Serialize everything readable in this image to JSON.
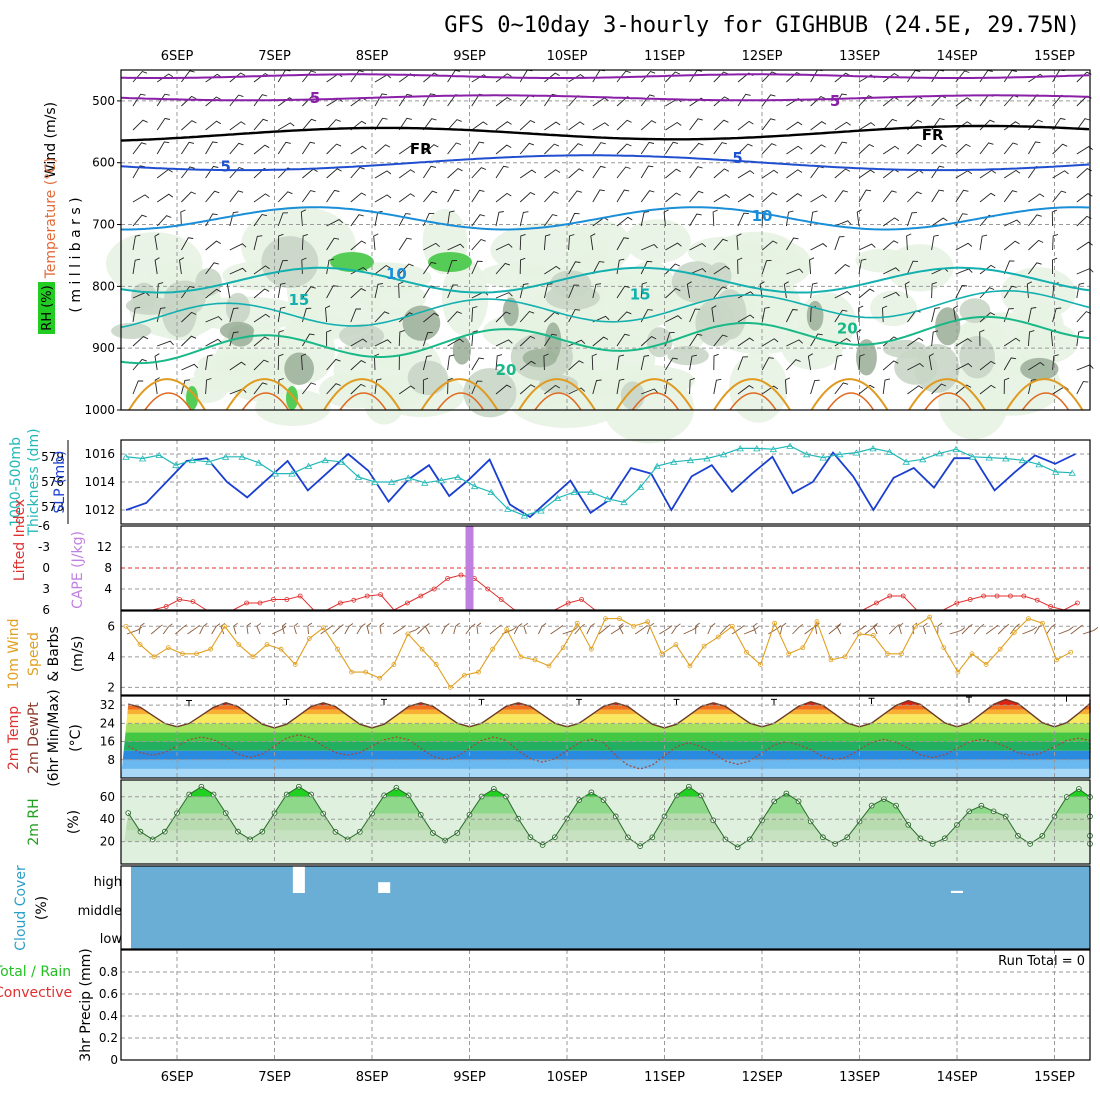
{
  "title": "GFS 0~10day 3-hourly for GIGHBUB (24.5E, 29.75N)",
  "dates": [
    "6SEP",
    "7SEP",
    "8SEP",
    "9SEP",
    "10SEP",
    "11SEP",
    "12SEP",
    "13SEP",
    "14SEP",
    "15SEP"
  ],
  "colors": {
    "temp_line": "#8a1fa8",
    "freeze_line": "#000000",
    "blue5": "#1f4fd0",
    "blue10": "#1a8fd8",
    "teal15": "#14b0b0",
    "green20": "#18b888",
    "orange25": "#e09a20",
    "slp": "#1a3fd0",
    "thickness": "#22b8b8",
    "cape": "#c080e0",
    "lifted": "#e03030",
    "wind": "#e0a020",
    "rh": "#22c022",
    "cloud": "#6aaed6",
    "rh_fill": "#dff0df"
  },
  "panels": {
    "upper": {
      "labels": [
        "Wind (m/s)",
        "Temperature (°C)",
        "RH (%)",
        "( m i l l i b a r s )"
      ],
      "y_ticks": [
        "500",
        "600",
        "700",
        "800",
        "900",
        "1000"
      ],
      "contour_labels": [
        {
          "text": "5",
          "at": "6SEP+34h",
          "level": 495,
          "color": "temp_line"
        },
        {
          "text": "5",
          "at": "12SEP+18h",
          "level": 500,
          "color": "temp_line"
        },
        {
          "text": "FR",
          "at": "8SEP+12h",
          "level": 578,
          "color": "freeze_line"
        },
        {
          "text": "FR",
          "at": "13SEP+18h",
          "level": 555,
          "color": "freeze_line"
        },
        {
          "text": "5",
          "at": "6SEP+12h",
          "level": 606,
          "color": "blue5"
        },
        {
          "text": "5",
          "at": "11SEP+18h",
          "level": 592,
          "color": "blue5"
        },
        {
          "text": "10",
          "at": "9SEP-18h",
          "level": 780,
          "color": "blue10"
        },
        {
          "text": "10",
          "at": "12SEP",
          "level": 686,
          "color": "blue10"
        },
        {
          "text": "15",
          "at": "7SEP+6h",
          "level": 822,
          "color": "teal15"
        },
        {
          "text": "15",
          "at": "10SEP+18h",
          "level": 813,
          "color": "teal15"
        },
        {
          "text": "20",
          "at": "9SEP+9h",
          "level": 935,
          "color": "green20"
        },
        {
          "text": "20",
          "at": "12SEP+21h",
          "level": 868,
          "color": "green20"
        }
      ]
    },
    "slp": {
      "labels": [
        "1000-500mb",
        "Thickness (dm)",
        "SLP (mb)"
      ],
      "left_ticks": [
        "579",
        "576",
        "573"
      ],
      "right_ticks": [
        "1016",
        "1014",
        "1012"
      ]
    },
    "cape": {
      "labels": [
        "Lifted Index",
        "CAPE (J/kg)"
      ],
      "left_ticks": [
        "-6",
        "-3",
        "0",
        "3",
        "6"
      ],
      "right_ticks": [
        "12",
        "8",
        "4"
      ]
    },
    "wind": {
      "labels": [
        "10m Wind",
        "Speed",
        "& Barbs",
        "(m/s)"
      ],
      "ticks": [
        "6",
        "4",
        "2"
      ]
    },
    "temp": {
      "labels": [
        "2m Temp",
        "2m DewPt",
        "(6hr Min/Max)",
        "(°C)"
      ],
      "ticks": [
        "32",
        "24",
        "16",
        "8"
      ]
    },
    "rh": {
      "labels": [
        "2m RH",
        "(%)"
      ],
      "ticks": [
        "60",
        "40",
        "20"
      ]
    },
    "cloud": {
      "labels": [
        "Cloud Cover",
        "(%)"
      ],
      "ticks": [
        "high",
        "middle",
        "low"
      ]
    },
    "precip": {
      "labels": [
        "Total / Rain",
        "Convective",
        "3hr Precip (mm)"
      ],
      "ticks": [
        "0.8",
        "0.6",
        "0.4",
        "0.2",
        "0"
      ],
      "run_total": "Run Total = 0"
    }
  },
  "chart_data": [
    {
      "type": "line",
      "name": "sea-level-pressure",
      "unit": "mb",
      "ylim": [
        1011,
        1017
      ],
      "x_start": "5SEP 15Z",
      "x_step_hours": 6,
      "values": [
        1012,
        1012.5,
        1014,
        1015.5,
        1015.7,
        1014,
        1012.9,
        1014.2,
        1015.5,
        1013.4,
        1014.7,
        1016,
        1014.8,
        1012.6,
        1014.2,
        1015.2,
        1013,
        1014.2,
        1015.6,
        1012.4,
        1011.5,
        1012.8,
        1014.1,
        1011.8,
        1012.8,
        1015,
        1014.6,
        1012,
        1014.4,
        1015.2,
        1013.3,
        1014.6,
        1015.8,
        1013.2,
        1014,
        1016.1,
        1014.4,
        1012,
        1014.3,
        1015,
        1013.6,
        1015.7,
        1015.7,
        1013.4,
        1014.7,
        1015.9,
        1015.3,
        1016
      ]
    },
    {
      "type": "line",
      "name": "thickness-1000-500mb",
      "unit": "dm",
      "ylim": [
        571,
        581
      ],
      "x_start": "5SEP 15Z",
      "x_step_hours": 6,
      "values": [
        579,
        578.8,
        579.2,
        578,
        578.6,
        578.4,
        579,
        579,
        578.3,
        577,
        577,
        577.9,
        578.6,
        578.4,
        576.6,
        576,
        576,
        576.5,
        575.9,
        576.2,
        576.6,
        575.5,
        574.8,
        572.8,
        572,
        572.6,
        574.1,
        574.8,
        574.8,
        574,
        573.6,
        575.4,
        577.9,
        578.4,
        578.6,
        578.8,
        579.3,
        580,
        580,
        579.9,
        580.3,
        579.3,
        578.9,
        579.3,
        579.5,
        580,
        579.6,
        578.4,
        578.7,
        579.4,
        579.9,
        579,
        578.9,
        578.8,
        578.6,
        578.1,
        577.2,
        577.1
      ]
    },
    {
      "type": "line",
      "name": "lifted-index",
      "unit": "°C",
      "ylim": [
        6,
        -6
      ],
      "x_start": "5SEP 15Z",
      "x_step_hours": 6,
      "values": [
        6,
        6,
        6,
        5.5,
        4.5,
        4.8,
        6,
        6,
        6,
        5,
        5,
        4.5,
        4.5,
        4,
        6,
        6,
        5,
        4.6,
        4,
        3.8,
        6,
        5,
        4,
        3,
        1.5,
        1,
        1.5,
        3,
        4.5,
        6,
        6,
        6,
        6,
        5,
        4.5,
        6,
        6,
        6,
        6,
        6,
        6,
        6,
        6,
        6,
        6,
        6,
        6,
        6,
        6,
        6,
        6,
        6,
        6,
        6,
        6,
        6,
        5,
        4,
        4,
        6,
        6,
        6,
        5,
        4.5,
        4,
        4,
        4,
        4,
        4.6,
        5.5,
        6,
        5
      ]
    },
    {
      "type": "bar",
      "name": "cape",
      "unit": "J/kg",
      "x": [
        "9SEP 00Z"
      ],
      "values": [
        16
      ]
    },
    {
      "type": "line",
      "name": "10m-wind-speed",
      "unit": "m/s",
      "ylim": [
        1.5,
        7
      ],
      "x_start": "5SEP 15Z",
      "x_step_hours": 6,
      "values": [
        6,
        4.8,
        4,
        4.6,
        4.2,
        4.2,
        4.5,
        6,
        4.8,
        4,
        4.8,
        4.5,
        3.5,
        5.2,
        5.9,
        4.5,
        3,
        3,
        2.6,
        3.5,
        5.5,
        4.5,
        3.5,
        2,
        2.8,
        3,
        4.5,
        5.8,
        4,
        3.8,
        3.4,
        4.6,
        6.2,
        4.5,
        6.5,
        6.5,
        6,
        6.3,
        4.2,
        4.8,
        3.4,
        4.7,
        5.3,
        6,
        4.3,
        3.5,
        6.2,
        4.2,
        4.6,
        6.3,
        3.8,
        4,
        5.5,
        5.4,
        4.2,
        4.2,
        6,
        6.6,
        4.6,
        3,
        4.2,
        3.5,
        4.5,
        5.6,
        6.5,
        6.2,
        3.8,
        4.3
      ]
    },
    {
      "type": "area",
      "name": "2m-temperature",
      "unit": "°C",
      "ylim": [
        0,
        36
      ],
      "x_start": "5SEP 12Z",
      "x_step_hours": 3,
      "daily_max": [
        32.5,
        33,
        33,
        33,
        33,
        33,
        33,
        33.5,
        34,
        34.5
      ],
      "daily_min": [
        22.5,
        22,
        22,
        22.5,
        22.5,
        22,
        22.5,
        22.5,
        22.5,
        22.5
      ],
      "dewpoint_max": [
        18,
        19,
        18,
        18,
        17,
        15.5,
        16,
        17,
        17,
        17.5
      ],
      "dewpoint_min": [
        10,
        9,
        10,
        8,
        7,
        4,
        6,
        8,
        9,
        10
      ]
    },
    {
      "type": "area",
      "name": "2m-relative-humidity",
      "unit": "%",
      "ylim": [
        0,
        75
      ],
      "daily_max": [
        69,
        69,
        68,
        67,
        64,
        69,
        63,
        58,
        52,
        67
      ],
      "daily_min": [
        22,
        22,
        22,
        21,
        17,
        16,
        15,
        18,
        18,
        18
      ]
    },
    {
      "type": "bar",
      "name": "cloud-cover",
      "unit": "%",
      "items": [
        {
          "x": "7SEP 06Z",
          "layer": "high",
          "value": 100
        },
        {
          "x": "8SEP 03Z",
          "layer": "high",
          "value": 40
        },
        {
          "x": "14SEP 00Z",
          "layer": "high",
          "value": 8
        }
      ]
    },
    {
      "type": "bar",
      "name": "3hr-precip",
      "unit": "mm",
      "ylim": [
        0,
        1
      ],
      "values": [
        0
      ]
    }
  ]
}
